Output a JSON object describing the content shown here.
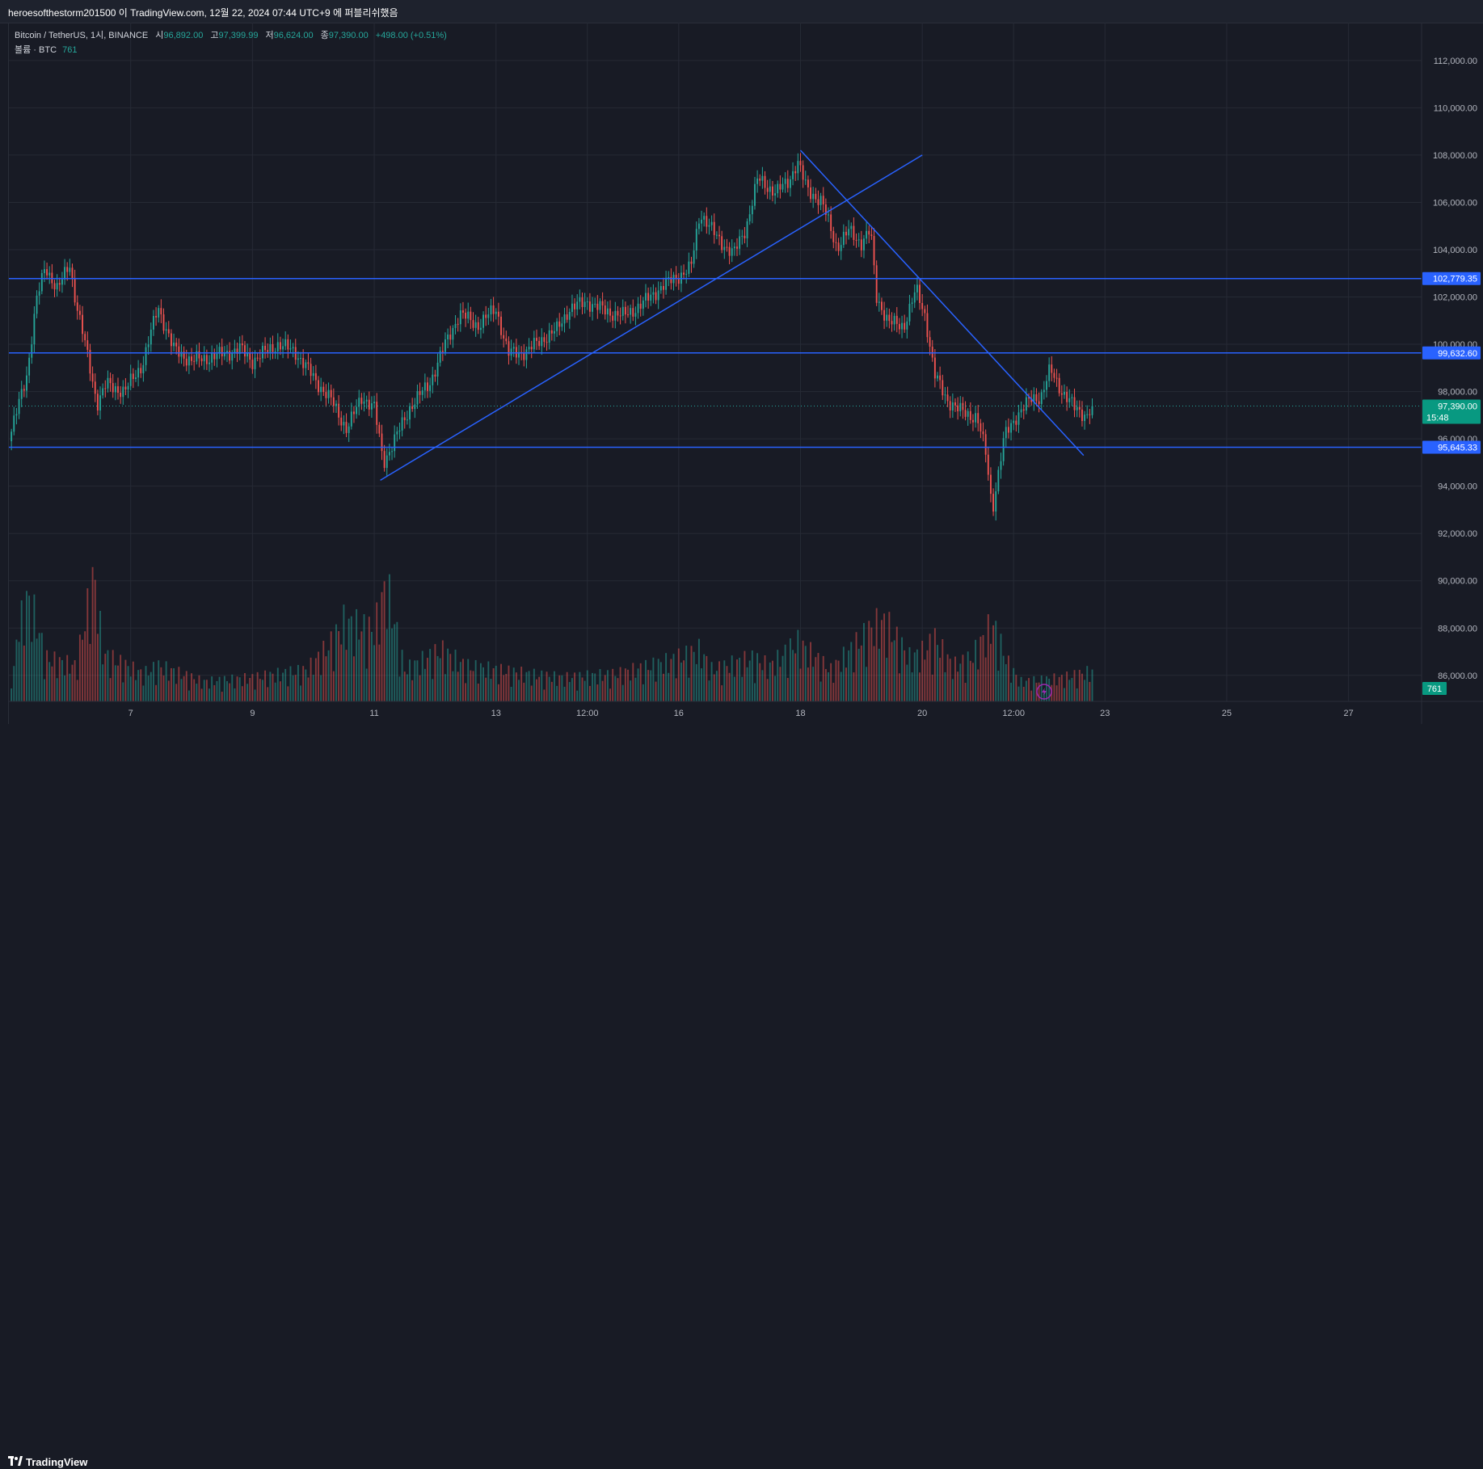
{
  "header": {
    "publish_line": "heroesofthestorm201500 이 TradingView.com, 12월 22, 2024 07:44 UTC+9 에 퍼블리쉬했음"
  },
  "legend": {
    "symbol": "Bitcoin / TetherUS, 1시, BINANCE",
    "open_label": "시",
    "open_value": "96,892.00",
    "high_label": "고",
    "high_value": "97,399.99",
    "low_label": "저",
    "low_value": "96,624.00",
    "close_label": "종",
    "close_value": "97,390.00",
    "change": "+498.00 (+0.51%)",
    "volume_label": "볼륨 · BTC",
    "volume_value": "761"
  },
  "footer": {
    "brand": "TradingView"
  },
  "colors": {
    "background": "#181b25",
    "grid": "#262a35",
    "up": "#26a69a",
    "down": "#ef5350",
    "drawing": "#2962ff",
    "price_tag": "#089981",
    "level_tag": "#2962ff"
  },
  "chart_data": {
    "type": "candlestick",
    "symbol": "Bitcoin / TetherUS",
    "interval": "1시",
    "exchange": "BINANCE",
    "y_axis": {
      "range": [
        84900,
        113600
      ],
      "ticks": [
        86000,
        88000,
        90000,
        92000,
        94000,
        96000,
        98000,
        100000,
        102000,
        104000,
        106000,
        108000,
        110000,
        112000
      ],
      "tick_labels": [
        "86,000.00",
        "88,000.00",
        "90,000.00",
        "92,000.00",
        "94,000.00",
        "96,000.00",
        "98,000.00",
        "100,000.00",
        "102,000.00",
        "104,000.00",
        "106,000.00",
        "108,000.00",
        "110,000.00",
        "112,000.00"
      ]
    },
    "x_axis": {
      "range_days": [
        5.0,
        28.2
      ],
      "ticks": [
        7,
        9,
        11,
        13,
        14.5,
        16,
        18,
        20,
        21.5,
        23,
        25,
        27
      ],
      "tick_labels": [
        "7",
        "9",
        "11",
        "13",
        "12:00",
        "16",
        "18",
        "20",
        "12:00",
        "23",
        "25",
        "27"
      ]
    },
    "price_path": [
      [
        5.0,
        95900
      ],
      [
        5.3,
        98800
      ],
      [
        5.45,
        101800
      ],
      [
        5.6,
        103300
      ],
      [
        5.8,
        102300
      ],
      [
        6.0,
        103400
      ],
      [
        6.1,
        101800
      ],
      [
        6.3,
        99400
      ],
      [
        6.45,
        97500
      ],
      [
        6.6,
        98300
      ],
      [
        6.9,
        98000
      ],
      [
        7.2,
        99200
      ],
      [
        7.45,
        101600
      ],
      [
        7.7,
        99800
      ],
      [
        8.0,
        99300
      ],
      [
        8.4,
        99500
      ],
      [
        8.8,
        99800
      ],
      [
        9.0,
        99300
      ],
      [
        9.4,
        100000
      ],
      [
        9.7,
        99700
      ],
      [
        10.0,
        98600
      ],
      [
        10.3,
        97600
      ],
      [
        10.55,
        96400
      ],
      [
        10.8,
        97800
      ],
      [
        11.0,
        97300
      ],
      [
        11.15,
        95000
      ],
      [
        11.4,
        96300
      ],
      [
        11.6,
        97400
      ],
      [
        11.9,
        98300
      ],
      [
        12.15,
        99900
      ],
      [
        12.4,
        101300
      ],
      [
        12.7,
        100800
      ],
      [
        13.0,
        101500
      ],
      [
        13.2,
        99600
      ],
      [
        13.5,
        99700
      ],
      [
        13.8,
        100300
      ],
      [
        14.0,
        100600
      ],
      [
        14.2,
        101500
      ],
      [
        14.5,
        101800
      ],
      [
        14.8,
        101400
      ],
      [
        15.1,
        101200
      ],
      [
        15.4,
        101700
      ],
      [
        15.7,
        102400
      ],
      [
        16.0,
        102900
      ],
      [
        16.2,
        103200
      ],
      [
        16.35,
        105600
      ],
      [
        16.6,
        104600
      ],
      [
        16.9,
        103800
      ],
      [
        17.1,
        104900
      ],
      [
        17.3,
        107000
      ],
      [
        17.6,
        106400
      ],
      [
        17.8,
        106900
      ],
      [
        17.95,
        107700
      ],
      [
        18.1,
        106600
      ],
      [
        18.35,
        106000
      ],
      [
        18.6,
        104100
      ],
      [
        18.8,
        104800
      ],
      [
        19.0,
        104300
      ],
      [
        19.15,
        104800
      ],
      [
        19.25,
        102000
      ],
      [
        19.45,
        100900
      ],
      [
        19.7,
        100800
      ],
      [
        19.9,
        102300
      ],
      [
        20.05,
        101200
      ],
      [
        20.2,
        98700
      ],
      [
        20.4,
        97700
      ],
      [
        20.6,
        97200
      ],
      [
        20.9,
        96900
      ],
      [
        21.05,
        95300
      ],
      [
        21.15,
        93000
      ],
      [
        21.35,
        96100
      ],
      [
        21.55,
        97000
      ],
      [
        21.8,
        97700
      ],
      [
        21.95,
        97800
      ],
      [
        22.1,
        98900
      ],
      [
        22.3,
        98000
      ],
      [
        22.5,
        97300
      ],
      [
        22.7,
        97000
      ],
      [
        22.8,
        97390
      ]
    ],
    "last_price": 97390.0,
    "last_price_label": "97,390.00",
    "countdown": "15:48",
    "horizontal_levels": [
      {
        "value": 102779.35,
        "label": "102,779.35"
      },
      {
        "value": 99632.6,
        "label": "99,632.60"
      },
      {
        "value": 95645.33,
        "label": "95,645.33"
      }
    ],
    "trendlines": [
      {
        "x": [
          11.1,
          20.0
        ],
        "y": [
          94250,
          108000
        ]
      },
      {
        "x": [
          18.0,
          22.65
        ],
        "y": [
          108200,
          95300
        ]
      }
    ],
    "volume": {
      "last_value": 761,
      "last_label": "761",
      "bars": [
        [
          5.1,
          1500
        ],
        [
          5.3,
          2600
        ],
        [
          5.45,
          2100
        ],
        [
          5.6,
          1100
        ],
        [
          6.1,
          900
        ],
        [
          6.4,
          3200
        ],
        [
          6.55,
          1200
        ],
        [
          7.2,
          700
        ],
        [
          7.45,
          900
        ],
        [
          8.2,
          500
        ],
        [
          9.0,
          600
        ],
        [
          9.9,
          800
        ],
        [
          10.3,
          1500
        ],
        [
          10.5,
          2000
        ],
        [
          11.0,
          1800
        ],
        [
          11.2,
          3000
        ],
        [
          11.5,
          800
        ],
        [
          12.1,
          1300
        ],
        [
          12.5,
          900
        ],
        [
          13.0,
          800
        ],
        [
          13.5,
          700
        ],
        [
          14.1,
          600
        ],
        [
          15.0,
          700
        ],
        [
          15.8,
          1000
        ],
        [
          16.35,
          1300
        ],
        [
          16.55,
          800
        ],
        [
          17.2,
          1100
        ],
        [
          17.5,
          900
        ],
        [
          17.95,
          1500
        ],
        [
          18.5,
          800
        ],
        [
          19.2,
          1900
        ],
        [
          19.4,
          2000
        ],
        [
          19.8,
          1100
        ],
        [
          20.05,
          1300
        ],
        [
          20.2,
          1600
        ],
        [
          20.5,
          900
        ],
        [
          20.8,
          1100
        ],
        [
          21.05,
          1700
        ],
        [
          21.15,
          2000
        ],
        [
          21.4,
          1000
        ],
        [
          21.6,
          500
        ],
        [
          22.0,
          550
        ],
        [
          22.3,
          600
        ],
        [
          22.8,
          761
        ]
      ]
    }
  }
}
